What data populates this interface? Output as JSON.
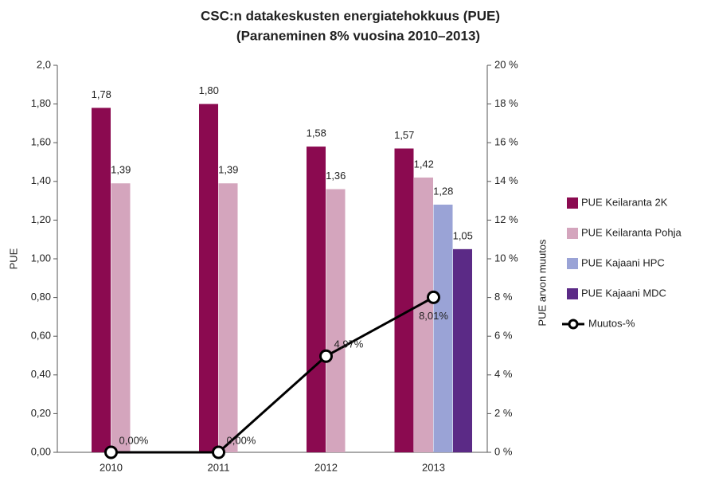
{
  "chart_data": {
    "type": "bar",
    "title": "CSC:n datakeskusten energiatehokkuus (PUE)",
    "subtitle": "(Paraneminen 8% vuosina 2010–2013)",
    "categories": [
      "2010",
      "2011",
      "2012",
      "2013"
    ],
    "ylabel": "PUE",
    "y2label": "PUE arvon muutos",
    "ylim": [
      0,
      2
    ],
    "yticks": [
      {
        "value": 0,
        "label": "0,00"
      },
      {
        "value": 0.2,
        "label": "0,20"
      },
      {
        "value": 0.4,
        "label": "0,40"
      },
      {
        "value": 0.6,
        "label": "0,60"
      },
      {
        "value": 0.8,
        "label": "0,80"
      },
      {
        "value": 1,
        "label": "1,00"
      },
      {
        "value": 1.2,
        "label": "1,20"
      },
      {
        "value": 1.4,
        "label": "1,40"
      },
      {
        "value": 1.6,
        "label": "1,60"
      },
      {
        "value": 1.8,
        "label": "1,80"
      },
      {
        "value": 2,
        "label": "2,0"
      }
    ],
    "y2lim": [
      0,
      20
    ],
    "y2ticks": [
      {
        "value": 0,
        "label": "0 %"
      },
      {
        "value": 2,
        "label": "2 %"
      },
      {
        "value": 4,
        "label": "4 %"
      },
      {
        "value": 6,
        "label": "6 %"
      },
      {
        "value": 8,
        "label": "8 %"
      },
      {
        "value": 10,
        "label": "10 %"
      },
      {
        "value": 12,
        "label": "12 %"
      },
      {
        "value": 14,
        "label": "14 %"
      },
      {
        "value": 16,
        "label": "16 %"
      },
      {
        "value": 18,
        "label": "18 %"
      },
      {
        "value": 20,
        "label": "20 %"
      }
    ],
    "grid": false,
    "legend": "right",
    "series": [
      {
        "name": "PUE Keilaranta 2K",
        "color": "#8b0a50",
        "values": [
          1.78,
          1.8,
          1.58,
          1.57
        ],
        "value_labels": [
          "1,78",
          "1,80",
          "1,58",
          "1,57"
        ]
      },
      {
        "name": "PUE Keilaranta Pohja",
        "color": "#d4a5bd",
        "values": [
          1.39,
          1.39,
          1.36,
          1.42
        ],
        "value_labels": [
          "1,39",
          "1,39",
          "1,36",
          "1,42"
        ]
      },
      {
        "name": "PUE Kajaani HPC",
        "color": "#9aa3d6",
        "values": [
          null,
          null,
          null,
          1.28
        ],
        "value_labels": [
          null,
          null,
          null,
          "1,28"
        ]
      },
      {
        "name": "PUE Kajaani MDC",
        "color": "#5b2a86",
        "values": [
          null,
          null,
          null,
          1.05
        ],
        "value_labels": [
          null,
          null,
          null,
          "1,05"
        ]
      },
      {
        "name": "Muutos-%",
        "type": "line",
        "axis": "y2",
        "color": "#000000",
        "values": [
          0,
          0,
          4.97,
          8.01
        ],
        "value_labels": [
          "0,00%",
          "0,00%",
          "4,97%",
          "8,01%"
        ]
      }
    ]
  }
}
